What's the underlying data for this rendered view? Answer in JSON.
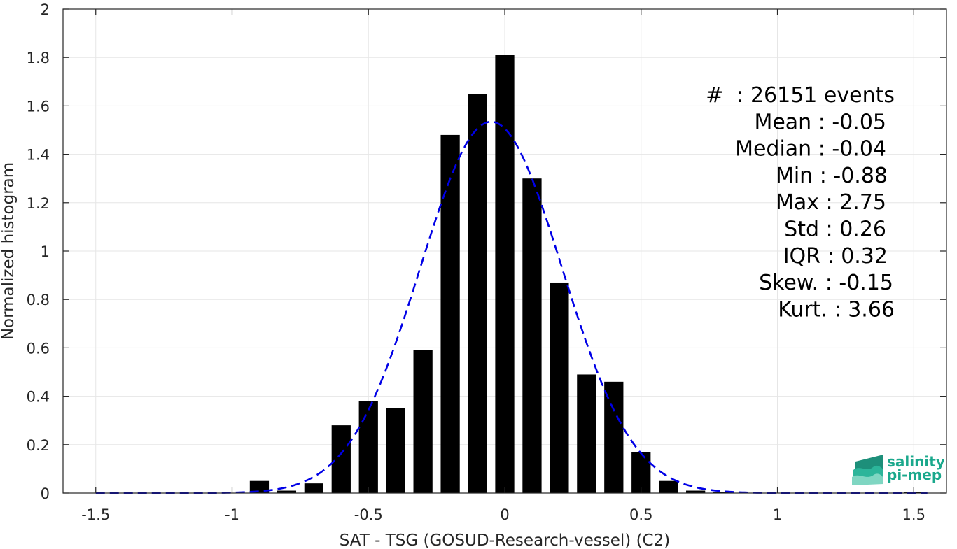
{
  "chart_data": {
    "type": "bar",
    "xlabel": "SAT - TSG (GOSUD-Research-vessel) (C2)",
    "ylabel": "Normalized histogram",
    "xlim": [
      -1.62,
      1.62
    ],
    "ylim": [
      0,
      2
    ],
    "grid": true,
    "x_ticks": [
      -1.5,
      -1,
      -0.5,
      0,
      0.5,
      1,
      1.5
    ],
    "x_tick_labels": [
      "-1.5",
      "-1",
      "-0.5",
      "0",
      "0.5",
      "1",
      "1.5"
    ],
    "y_ticks": [
      0,
      0.2,
      0.4,
      0.6,
      0.8,
      1,
      1.2,
      1.4,
      1.6,
      1.8,
      2
    ],
    "y_tick_labels": [
      "0",
      "0.2",
      "0.4",
      "0.6",
      "0.8",
      "1",
      "1.2",
      "1.4",
      "1.6",
      "1.8",
      "2"
    ],
    "bar_width": 0.07,
    "bar_color": "#000000",
    "bars": [
      {
        "x": -0.9,
        "y": 0.05
      },
      {
        "x": -0.8,
        "y": 0.01
      },
      {
        "x": -0.7,
        "y": 0.04
      },
      {
        "x": -0.6,
        "y": 0.28
      },
      {
        "x": -0.5,
        "y": 0.38
      },
      {
        "x": -0.4,
        "y": 0.35
      },
      {
        "x": -0.3,
        "y": 0.59
      },
      {
        "x": -0.2,
        "y": 1.48
      },
      {
        "x": -0.1,
        "y": 1.65
      },
      {
        "x": 0.0,
        "y": 1.81
      },
      {
        "x": 0.1,
        "y": 1.3
      },
      {
        "x": 0.2,
        "y": 0.87
      },
      {
        "x": 0.3,
        "y": 0.49
      },
      {
        "x": 0.4,
        "y": 0.46
      },
      {
        "x": 0.5,
        "y": 0.17
      },
      {
        "x": 0.6,
        "y": 0.05
      },
      {
        "x": 0.7,
        "y": 0.01
      },
      {
        "x": 0.8,
        "y": 0.005
      },
      {
        "x": 1.5,
        "y": 0.003
      }
    ],
    "fit_curve": {
      "style": "dashed",
      "color": "#0000e6",
      "mean": -0.05,
      "std": 0.26,
      "x_range": [
        -1.5,
        1.55
      ]
    },
    "annotation_lines": [
      "#  : 26151 events",
      "Mean : -0.05",
      "Median : -0.04",
      "Min : -0.88",
      "Max : 2.75",
      "Std : 0.26",
      "IQR : 0.32",
      "Skew. : -0.15",
      "Kurt. : 3.66"
    ]
  },
  "logo": {
    "line1": "salinity",
    "line2": "pi-mep",
    "color": "#1aa88c",
    "icon": "salinity-wave-logo-icon"
  }
}
